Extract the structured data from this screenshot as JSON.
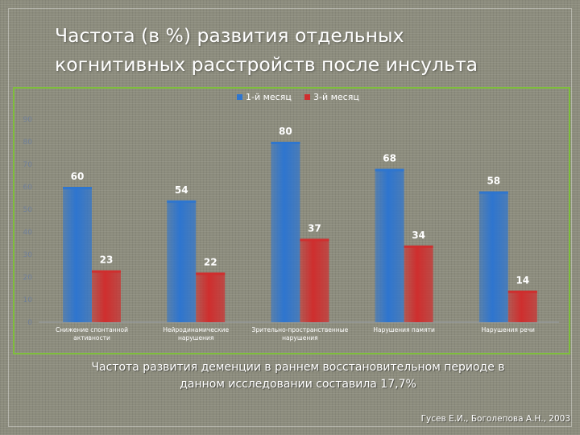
{
  "title": {
    "line1": "Частота (в %) развития отдельных",
    "line2": "когнитивных расстройств после инсульта"
  },
  "chart_data": {
    "type": "bar",
    "categories": [
      [
        "Снижение спонтанной",
        "активности"
      ],
      [
        "Нейродинамические",
        "нарушения"
      ],
      [
        "Зрительно-пространственные",
        "нарушения"
      ],
      [
        "Нарушения памяти"
      ],
      [
        "Нарушения речи"
      ]
    ],
    "series": [
      {
        "name": "1-й месяц",
        "color": "#2e75cf",
        "values": [
          60,
          54,
          80,
          68,
          58
        ]
      },
      {
        "name": "3-й месяц",
        "color": "#cf2e2e",
        "values": [
          23,
          22,
          37,
          34,
          14
        ]
      }
    ],
    "ylim": [
      0,
      90
    ],
    "yticks": [
      "0",
      "10",
      "20",
      "30",
      "40",
      "50",
      "60",
      "70",
      "80",
      "90"
    ],
    "legend_position": "top",
    "grid": false
  },
  "caption": {
    "line1": "Частота развития деменции в раннем восстановительном периоде в",
    "line2": "данном исследовании составила 17,7%"
  },
  "source": "Гусев Е.И., Боголепова А.Н., 2003"
}
